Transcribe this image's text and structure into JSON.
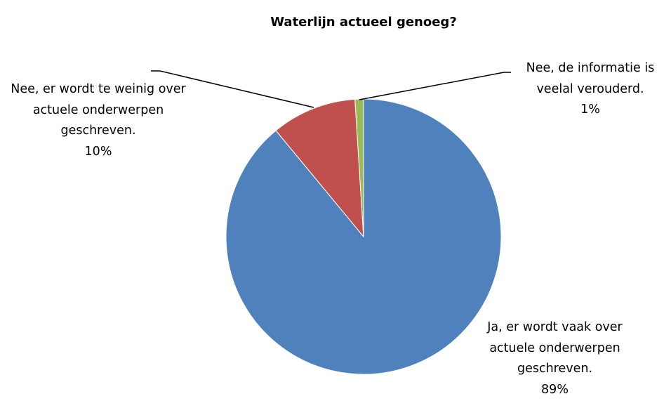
{
  "chart_data": {
    "type": "pie",
    "title": "Waterlijn actueel genoeg?",
    "categories": [
      "Ja, er wordt vaak over actuele onderwerpen geschreven.",
      "Nee, er wordt te weinig over actuele onderwerpen geschreven.",
      "Nee, de informatie is veelal verouderd."
    ],
    "values": [
      89,
      10,
      1
    ],
    "value_labels": [
      "89%",
      "10%",
      "1%"
    ],
    "colors": [
      "#4f81bd",
      "#c0504d",
      "#9bbb59"
    ]
  }
}
